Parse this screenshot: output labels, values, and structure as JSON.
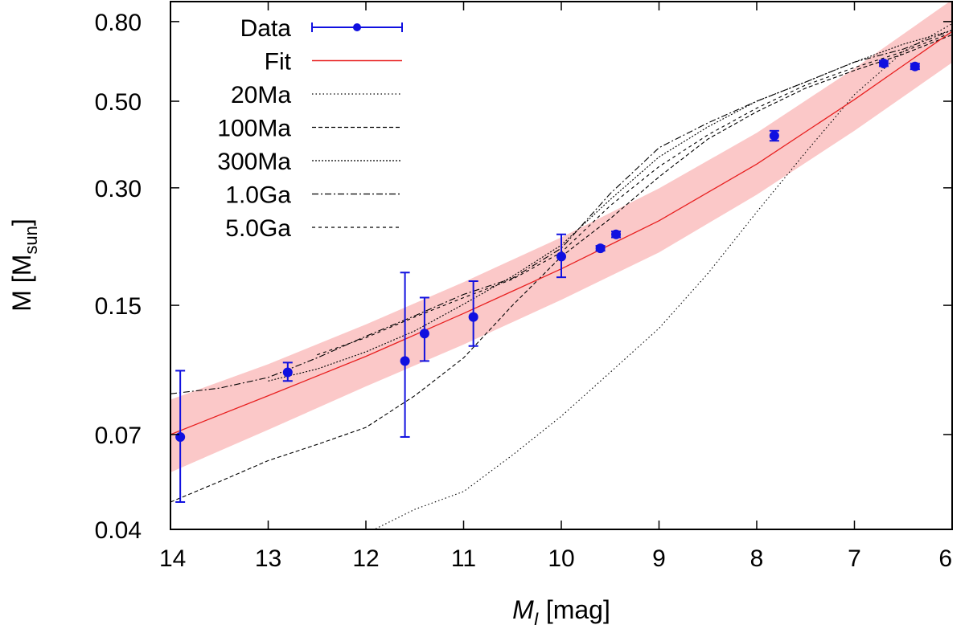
{
  "chart_data": {
    "type": "scatter",
    "title": "",
    "xlabel": "[mag]",
    "xlabel_symbol": "M",
    "xlabel_subscript": "I",
    "ylabel": "M [M",
    "ylabel_subscript": "sun",
    "ylabel_close": "]",
    "xlim": [
      14,
      6
    ],
    "ylim": [
      0.04,
      0.9
    ],
    "yscale": "log",
    "xticks": [
      14,
      13,
      12,
      11,
      10,
      9,
      8,
      7,
      6
    ],
    "xtick_labels": [
      "14",
      "13",
      "12",
      "11",
      "10",
      "9",
      "8",
      "7",
      "6"
    ],
    "yticks": [
      0.04,
      0.07,
      0.15,
      0.3,
      0.5,
      0.8
    ],
    "ytick_labels": [
      "0.04",
      "0.07",
      "0.15",
      "0.30",
      "0.50",
      "0.80"
    ],
    "legend_position": "top-left",
    "legend": [
      "Data",
      "Fit",
      "20Ma",
      "100Ma",
      "300Ma",
      "1.0Ga",
      "5.0Ga"
    ],
    "colors": {
      "data": "#1010e0",
      "fit": "#e82020",
      "band": "#fbc8c8",
      "isochrone": "#000000",
      "frame": "#000000"
    },
    "data_points": [
      {
        "x": 13.9,
        "y": 0.069,
        "ylow": 0.047,
        "yhigh": 0.102
      },
      {
        "x": 12.8,
        "y": 0.101,
        "ylow": 0.096,
        "yhigh": 0.107
      },
      {
        "x": 11.6,
        "y": 0.108,
        "ylow": 0.069,
        "yhigh": 0.182
      },
      {
        "x": 11.4,
        "y": 0.127,
        "ylow": 0.108,
        "yhigh": 0.157
      },
      {
        "x": 10.9,
        "y": 0.14,
        "ylow": 0.118,
        "yhigh": 0.173
      },
      {
        "x": 10.0,
        "y": 0.2,
        "ylow": 0.177,
        "yhigh": 0.228
      },
      {
        "x": 9.6,
        "y": 0.21,
        "ylow": 0.207,
        "yhigh": 0.213
      },
      {
        "x": 9.44,
        "y": 0.228,
        "ylow": 0.224,
        "yhigh": 0.232
      },
      {
        "x": 7.82,
        "y": 0.408,
        "ylow": 0.396,
        "yhigh": 0.42
      },
      {
        "x": 6.7,
        "y": 0.625,
        "ylow": 0.615,
        "yhigh": 0.635
      },
      {
        "x": 6.38,
        "y": 0.614,
        "ylow": 0.604,
        "yhigh": 0.624
      }
    ],
    "fit": {
      "x": [
        14,
        13,
        12,
        11,
        10,
        9,
        8,
        7,
        6
      ],
      "y": [
        0.07,
        0.088,
        0.111,
        0.143,
        0.186,
        0.247,
        0.345,
        0.505,
        0.755
      ],
      "band_low": [
        0.056,
        0.072,
        0.093,
        0.119,
        0.155,
        0.205,
        0.288,
        0.42,
        0.628
      ],
      "band_high": [
        0.086,
        0.106,
        0.134,
        0.172,
        0.224,
        0.299,
        0.415,
        0.607,
        0.91
      ]
    },
    "series": [
      {
        "name": "20Ma",
        "dash": "1.5,3",
        "x": [
          12,
          11.5,
          11,
          10.5,
          10,
          9.5,
          9,
          8.5,
          8,
          7.5,
          7,
          6.5,
          6
        ],
        "y": [
          0.039,
          0.045,
          0.05,
          0.062,
          0.078,
          0.101,
          0.131,
          0.181,
          0.26,
          0.37,
          0.52,
          0.67,
          0.79
        ]
      },
      {
        "name": "100Ma",
        "dash": "5,3",
        "x": [
          14,
          13.5,
          13,
          12.5,
          12,
          11.5,
          11,
          10.5,
          10,
          9.5,
          9,
          8.5,
          8,
          7.5,
          7,
          6.5,
          6
        ],
        "y": [
          0.047,
          0.053,
          0.06,
          0.066,
          0.073,
          0.088,
          0.11,
          0.15,
          0.2,
          0.25,
          0.32,
          0.4,
          0.47,
          0.54,
          0.6,
          0.66,
          0.74
        ]
      },
      {
        "name": "300Ma",
        "dash": "2,2",
        "x": [
          13,
          12.5,
          12,
          11.5,
          11,
          10.5,
          10,
          9.5,
          9,
          8.5,
          8,
          7.5,
          7,
          6.5,
          6
        ],
        "y": [
          0.096,
          0.103,
          0.114,
          0.129,
          0.151,
          0.178,
          0.214,
          0.28,
          0.36,
          0.43,
          0.5,
          0.56,
          0.63,
          0.7,
          0.76
        ]
      },
      {
        "name": "1.0Ga",
        "dash": "8,3,2,3",
        "x": [
          14,
          13.5,
          13,
          12.5,
          12,
          11.5,
          11,
          10.5,
          10,
          9.5,
          9,
          8.5,
          8,
          7.5,
          7,
          6.5,
          6
        ],
        "y": [
          0.089,
          0.092,
          0.098,
          0.11,
          0.125,
          0.141,
          0.16,
          0.176,
          0.21,
          0.29,
          0.38,
          0.44,
          0.5,
          0.56,
          0.63,
          0.68,
          0.76
        ]
      },
      {
        "name": "5.0Ga",
        "dash": "4,4",
        "x": [
          12.5,
          12,
          11.5,
          11,
          10.5,
          10,
          9.5,
          9,
          8.5,
          8,
          7.5,
          7,
          6.5,
          6
        ],
        "y": [
          0.112,
          0.124,
          0.14,
          0.157,
          0.175,
          0.205,
          0.27,
          0.34,
          0.41,
          0.48,
          0.55,
          0.61,
          0.67,
          0.75
        ]
      }
    ]
  }
}
